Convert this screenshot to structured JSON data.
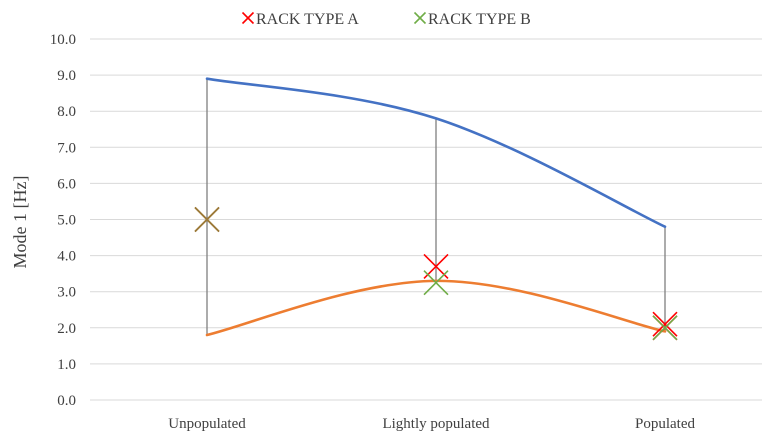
{
  "chart_data": {
    "type": "line",
    "title": "",
    "xlabel": "",
    "ylabel": "Mode 1 [Hz]",
    "ylim": [
      0,
      10
    ],
    "yticks": [
      "0.0",
      "1.0",
      "2.0",
      "3.0",
      "4.0",
      "5.0",
      "6.0",
      "7.0",
      "8.0",
      "9.0",
      "10.0"
    ],
    "categories": [
      "Unpopulated",
      "Lightly populated",
      "Populated"
    ],
    "grid": true,
    "legend_position": "top",
    "range_series": {
      "upper": {
        "values": [
          8.9,
          7.8,
          4.8
        ],
        "color": "#4472C4"
      },
      "lower": {
        "values": [
          1.8,
          3.3,
          1.9
        ],
        "color": "#ED7D31"
      }
    },
    "series": [
      {
        "name": "RACK TYPE A",
        "marker": "x",
        "color": "#FF0000",
        "points": [
          {
            "cat": 0,
            "y": 5.0
          },
          {
            "cat": 1,
            "y": 3.7
          },
          {
            "cat": 2,
            "y": 2.1
          },
          {
            "cat": 2,
            "y": 2.0
          }
        ]
      },
      {
        "name": "RACK TYPE B",
        "marker": "x",
        "color": "#70AD47",
        "points": [
          {
            "cat": 0,
            "y": 5.0
          },
          {
            "cat": 1,
            "y": 3.25
          },
          {
            "cat": 2,
            "y": 2.0
          }
        ]
      }
    ]
  }
}
